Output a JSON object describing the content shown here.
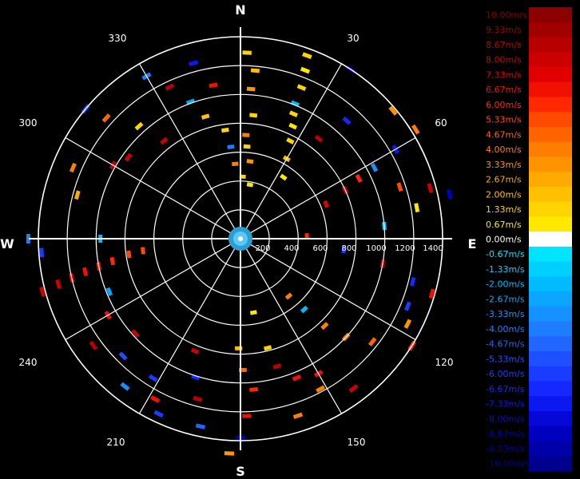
{
  "chart_data": {
    "type": "polar-radar",
    "cardinals": [
      "N",
      "E",
      "S",
      "W"
    ],
    "bearing_labels": [
      "30",
      "60",
      "120",
      "150",
      "210",
      "240",
      "300",
      "330"
    ],
    "range_labels": [
      "200",
      "400",
      "600",
      "800",
      "1000",
      "1200",
      "1400"
    ],
    "range_max": 1400,
    "legend_labels": [
      "10.00m/s",
      "9.33m/s",
      "8.67m/s",
      "8.00m/s",
      "7.33m/s",
      "6.67m/s",
      "6.00m/s",
      "5.33m/s",
      "4.67m/s",
      "4.00m/s",
      "3.33m/s",
      "2.67m/s",
      "2.00m/s",
      "1.33m/s",
      "0.67m/s",
      "0.00m/s",
      "-0.67m/s",
      "-1.33m/s",
      "-2.00m/s",
      "-2.67m/s",
      "-3.33m/s",
      "-4.00m/s",
      "-4.67m/s",
      "-5.33m/s",
      "-6.00m/s",
      "-6.67m/s",
      "-7.33m/s",
      "-8.00m/s",
      "-8.67m/s",
      "-9.33m/s",
      "-10.00m/s"
    ],
    "legend_colors": [
      "#8b0000",
      "#a00000",
      "#b80000",
      "#cc0000",
      "#e00000",
      "#f21000",
      "#ff2800",
      "#ff4a00",
      "#ff6400",
      "#ff7e00",
      "#ff9400",
      "#ffaa00",
      "#ffc000",
      "#ffd400",
      "#ffe800",
      "#ffffff",
      "#00e4ff",
      "#00d0ff",
      "#00bcff",
      "#0aa6ff",
      "#1592ff",
      "#1e7cff",
      "#2066ff",
      "#1f50ff",
      "#1a3cff",
      "#1428ff",
      "#0c18f0",
      "#0608d8",
      "#0000c0",
      "#0000a8",
      "#000090"
    ],
    "returns": [
      {
        "az": 2,
        "r": 1290,
        "v": 1.3
      },
      {
        "az": 5,
        "r": 1170,
        "v": 2.0
      },
      {
        "az": 4,
        "r": 1040,
        "v": 3.3
      },
      {
        "az": 6,
        "r": 860,
        "v": 1.3
      },
      {
        "az": 3,
        "r": 720,
        "v": 4.0
      },
      {
        "az": 4,
        "r": 640,
        "v": 1.3
      },
      {
        "az": 7,
        "r": 540,
        "v": 3.3
      },
      {
        "az": 2,
        "r": 430,
        "v": 1.3
      },
      {
        "az": 10,
        "r": 380,
        "v": 0.7
      },
      {
        "az": 20,
        "r": 1350,
        "v": 1.3
      },
      {
        "az": 21,
        "r": 1250,
        "v": 0.7
      },
      {
        "az": 22,
        "r": 1130,
        "v": 1.3
      },
      {
        "az": 22,
        "r": 1010,
        "v": -2.0
      },
      {
        "az": 23,
        "r": 940,
        "v": 1.3
      },
      {
        "az": 25,
        "r": 860,
        "v": 0.7
      },
      {
        "az": 27,
        "r": 760,
        "v": 1.3
      },
      {
        "az": 30,
        "r": 640,
        "v": 2.0
      },
      {
        "az": 35,
        "r": 520,
        "v": 0.7
      },
      {
        "az": 33,
        "r": 1400,
        "v": -9.3
      },
      {
        "az": 42,
        "r": 1100,
        "v": -6.7
      },
      {
        "az": 38,
        "r": 880,
        "v": 8.7
      },
      {
        "az": 50,
        "r": 1380,
        "v": 3.3
      },
      {
        "az": 58,
        "r": 1430,
        "v": 4.0
      },
      {
        "az": 60,
        "r": 1240,
        "v": -7.3
      },
      {
        "az": 62,
        "r": 1050,
        "v": -3.3
      },
      {
        "az": 63,
        "r": 920,
        "v": 6.0
      },
      {
        "az": 65,
        "r": 800,
        "v": 8.0
      },
      {
        "az": 68,
        "r": 640,
        "v": 7.3
      },
      {
        "az": 72,
        "r": 1160,
        "v": 5.3
      },
      {
        "az": 75,
        "r": 1360,
        "v": 8.0
      },
      {
        "az": 78,
        "r": 1480,
        "v": -8.7
      },
      {
        "az": 80,
        "r": 1240,
        "v": 0.7
      },
      {
        "az": 85,
        "r": 1000,
        "v": -2.0
      },
      {
        "az": 88,
        "r": 460,
        "v": 6.0
      },
      {
        "az": 96,
        "r": 720,
        "v": -6.0
      },
      {
        "az": 100,
        "r": 1000,
        "v": 8.7
      },
      {
        "az": 104,
        "r": 1230,
        "v": -6.7
      },
      {
        "az": 106,
        "r": 1380,
        "v": 6.7
      },
      {
        "az": 112,
        "r": 1250,
        "v": -6.0
      },
      {
        "az": 117,
        "r": 1300,
        "v": 3.3
      },
      {
        "az": 122,
        "r": 1400,
        "v": 6.0
      },
      {
        "az": 128,
        "r": 1160,
        "v": 4.7
      },
      {
        "az": 133,
        "r": 1000,
        "v": 4.0
      },
      {
        "az": 136,
        "r": 840,
        "v": 4.0
      },
      {
        "az": 138,
        "r": 660,
        "v": -2.0
      },
      {
        "az": 140,
        "r": 520,
        "v": 4.0
      },
      {
        "az": 143,
        "r": 1300,
        "v": 8.0
      },
      {
        "az": 150,
        "r": 1080,
        "v": 6.7
      },
      {
        "az": 152,
        "r": 1180,
        "v": 4.0
      },
      {
        "az": 158,
        "r": 1040,
        "v": 6.7
      },
      {
        "az": 162,
        "r": 1290,
        "v": 4.0
      },
      {
        "az": 164,
        "r": 920,
        "v": 8.7
      },
      {
        "az": 166,
        "r": 780,
        "v": 1.3
      },
      {
        "az": 170,
        "r": 520,
        "v": 0.7
      },
      {
        "az": 175,
        "r": 1050,
        "v": 6.0
      },
      {
        "az": 178,
        "r": 1230,
        "v": 6.7
      },
      {
        "az": 179,
        "r": 910,
        "v": 4.7
      },
      {
        "az": 181,
        "r": 760,
        "v": 2.0
      },
      {
        "az": 180,
        "r": 1380,
        "v": -9.3
      },
      {
        "az": 183,
        "r": 1490,
        "v": 3.3
      },
      {
        "az": 192,
        "r": 1330,
        "v": -4.7
      },
      {
        "az": 195,
        "r": 1150,
        "v": 8.7
      },
      {
        "az": 198,
        "r": 1010,
        "v": -6.7
      },
      {
        "az": 202,
        "r": 840,
        "v": 8.0
      },
      {
        "az": 205,
        "r": 1340,
        "v": -6.0
      },
      {
        "az": 208,
        "r": 1260,
        "v": 6.7
      },
      {
        "az": 212,
        "r": 1140,
        "v": -6.0
      },
      {
        "az": 218,
        "r": 1300,
        "v": -3.3
      },
      {
        "az": 225,
        "r": 1150,
        "v": -5.3
      },
      {
        "az": 228,
        "r": 980,
        "v": 8.0
      },
      {
        "az": 234,
        "r": 1260,
        "v": 8.7
      },
      {
        "az": 240,
        "r": 1060,
        "v": 6.7
      },
      {
        "az": 248,
        "r": 980,
        "v": -2.7
      },
      {
        "az": 255,
        "r": 1420,
        "v": 8.0
      },
      {
        "az": 256,
        "r": 1300,
        "v": 8.0
      },
      {
        "az": 257,
        "r": 1200,
        "v": 7.3
      },
      {
        "az": 258,
        "r": 1100,
        "v": 6.7
      },
      {
        "az": 259,
        "r": 1000,
        "v": 6.7
      },
      {
        "az": 260,
        "r": 900,
        "v": 6.0
      },
      {
        "az": 262,
        "r": 780,
        "v": 5.3
      },
      {
        "az": 263,
        "r": 680,
        "v": 5.3
      },
      {
        "az": 266,
        "r": 1380,
        "v": -6.0
      },
      {
        "az": 270,
        "r": 1470,
        "v": -4.0
      },
      {
        "az": 270,
        "r": 970,
        "v": -2.0
      },
      {
        "az": 285,
        "r": 1170,
        "v": 2.7
      },
      {
        "az": 293,
        "r": 1260,
        "v": 4.0
      },
      {
        "az": 300,
        "r": 1020,
        "v": 8.7
      },
      {
        "az": 306,
        "r": 960,
        "v": 8.0
      },
      {
        "az": 310,
        "r": 1400,
        "v": -6.0
      },
      {
        "az": 312,
        "r": 1250,
        "v": 4.7
      },
      {
        "az": 318,
        "r": 1050,
        "v": 1.3
      },
      {
        "az": 322,
        "r": 860,
        "v": 8.0
      },
      {
        "az": 330,
        "r": 1300,
        "v": -4.0
      },
      {
        "az": 335,
        "r": 1160,
        "v": 8.7
      },
      {
        "az": 340,
        "r": 1010,
        "v": -2.7
      },
      {
        "az": 344,
        "r": 880,
        "v": 2.0
      },
      {
        "az": 345,
        "r": 1260,
        "v": -7.3
      },
      {
        "az": 350,
        "r": 1080,
        "v": 6.7
      },
      {
        "az": 352,
        "r": 760,
        "v": 1.3
      },
      {
        "az": 354,
        "r": 640,
        "v": -4.0
      },
      {
        "az": 356,
        "r": 520,
        "v": 4.0
      }
    ]
  }
}
